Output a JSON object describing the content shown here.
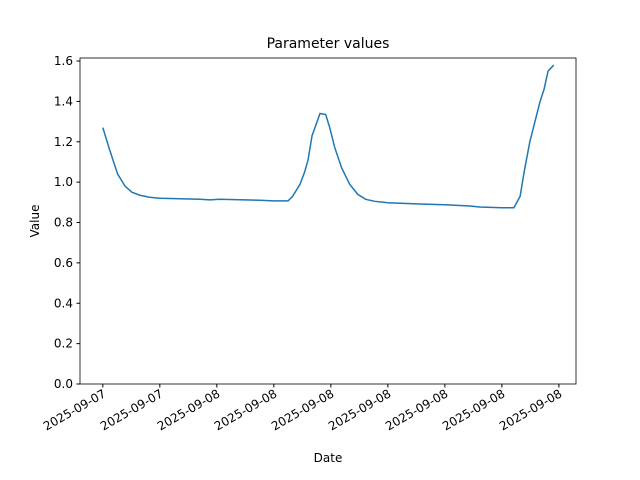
{
  "chart_data": {
    "type": "line",
    "title": "Parameter values",
    "x_label": "Date",
    "y_label": "Value",
    "x": [
      0,
      0.12,
      0.26,
      0.39,
      0.51,
      0.65,
      0.82,
      1,
      1.35,
      1.7,
      1.88,
      2.05,
      2.4,
      2.75,
      3,
      3.25,
      3.33,
      3.46,
      3.54,
      3.6,
      3.67,
      3.81,
      3.91,
      3.98,
      4.07,
      4.19,
      4.33,
      4.47,
      4.61,
      4.77,
      5,
      5.56,
      6,
      6.44,
      6.61,
      7,
      7.21,
      7.32,
      7.39,
      7.49,
      7.58,
      7.67,
      7.74,
      7.81,
      7.91
    ],
    "series": [
      {
        "name": "Value",
        "color": "#1f77b4",
        "values": [
          1.27,
          1.16,
          1.04,
          0.98,
          0.95,
          0.935,
          0.925,
          0.92,
          0.918,
          0.915,
          0.912,
          0.915,
          0.913,
          0.91,
          0.907,
          0.907,
          0.93,
          0.99,
          1.05,
          1.11,
          1.23,
          1.34,
          1.335,
          1.27,
          1.17,
          1.07,
          0.99,
          0.94,
          0.915,
          0.905,
          0.898,
          0.892,
          0.888,
          0.882,
          0.877,
          0.873,
          0.873,
          0.93,
          1.05,
          1.2,
          1.3,
          1.4,
          1.46,
          1.55,
          1.58
        ]
      }
    ],
    "xlim": [
      -0.4,
      8.3
    ],
    "ylim": [
      0,
      1.615
    ],
    "xticks": [
      {
        "value": 0,
        "label": "2025-09-07"
      },
      {
        "value": 1,
        "label": "2025-09-07"
      },
      {
        "value": 2,
        "label": "2025-09-08"
      },
      {
        "value": 3,
        "label": "2025-09-08"
      },
      {
        "value": 4,
        "label": "2025-09-08"
      },
      {
        "value": 5,
        "label": "2025-09-08"
      },
      {
        "value": 6,
        "label": "2025-09-08"
      },
      {
        "value": 7,
        "label": "2025-09-08"
      },
      {
        "value": 8,
        "label": "2025-09-08"
      }
    ],
    "yticks": [
      {
        "value": 0,
        "label": "0.0"
      },
      {
        "value": 0.2,
        "label": "0.2"
      },
      {
        "value": 0.4,
        "label": "0.4"
      },
      {
        "value": 0.6,
        "label": "0.6"
      },
      {
        "value": 0.8,
        "label": "0.8"
      },
      {
        "value": 1,
        "label": "1.0"
      },
      {
        "value": 1.2,
        "label": "1.2"
      },
      {
        "value": 1.4,
        "label": "1.4"
      },
      {
        "value": 1.6,
        "label": "1.6"
      }
    ]
  }
}
